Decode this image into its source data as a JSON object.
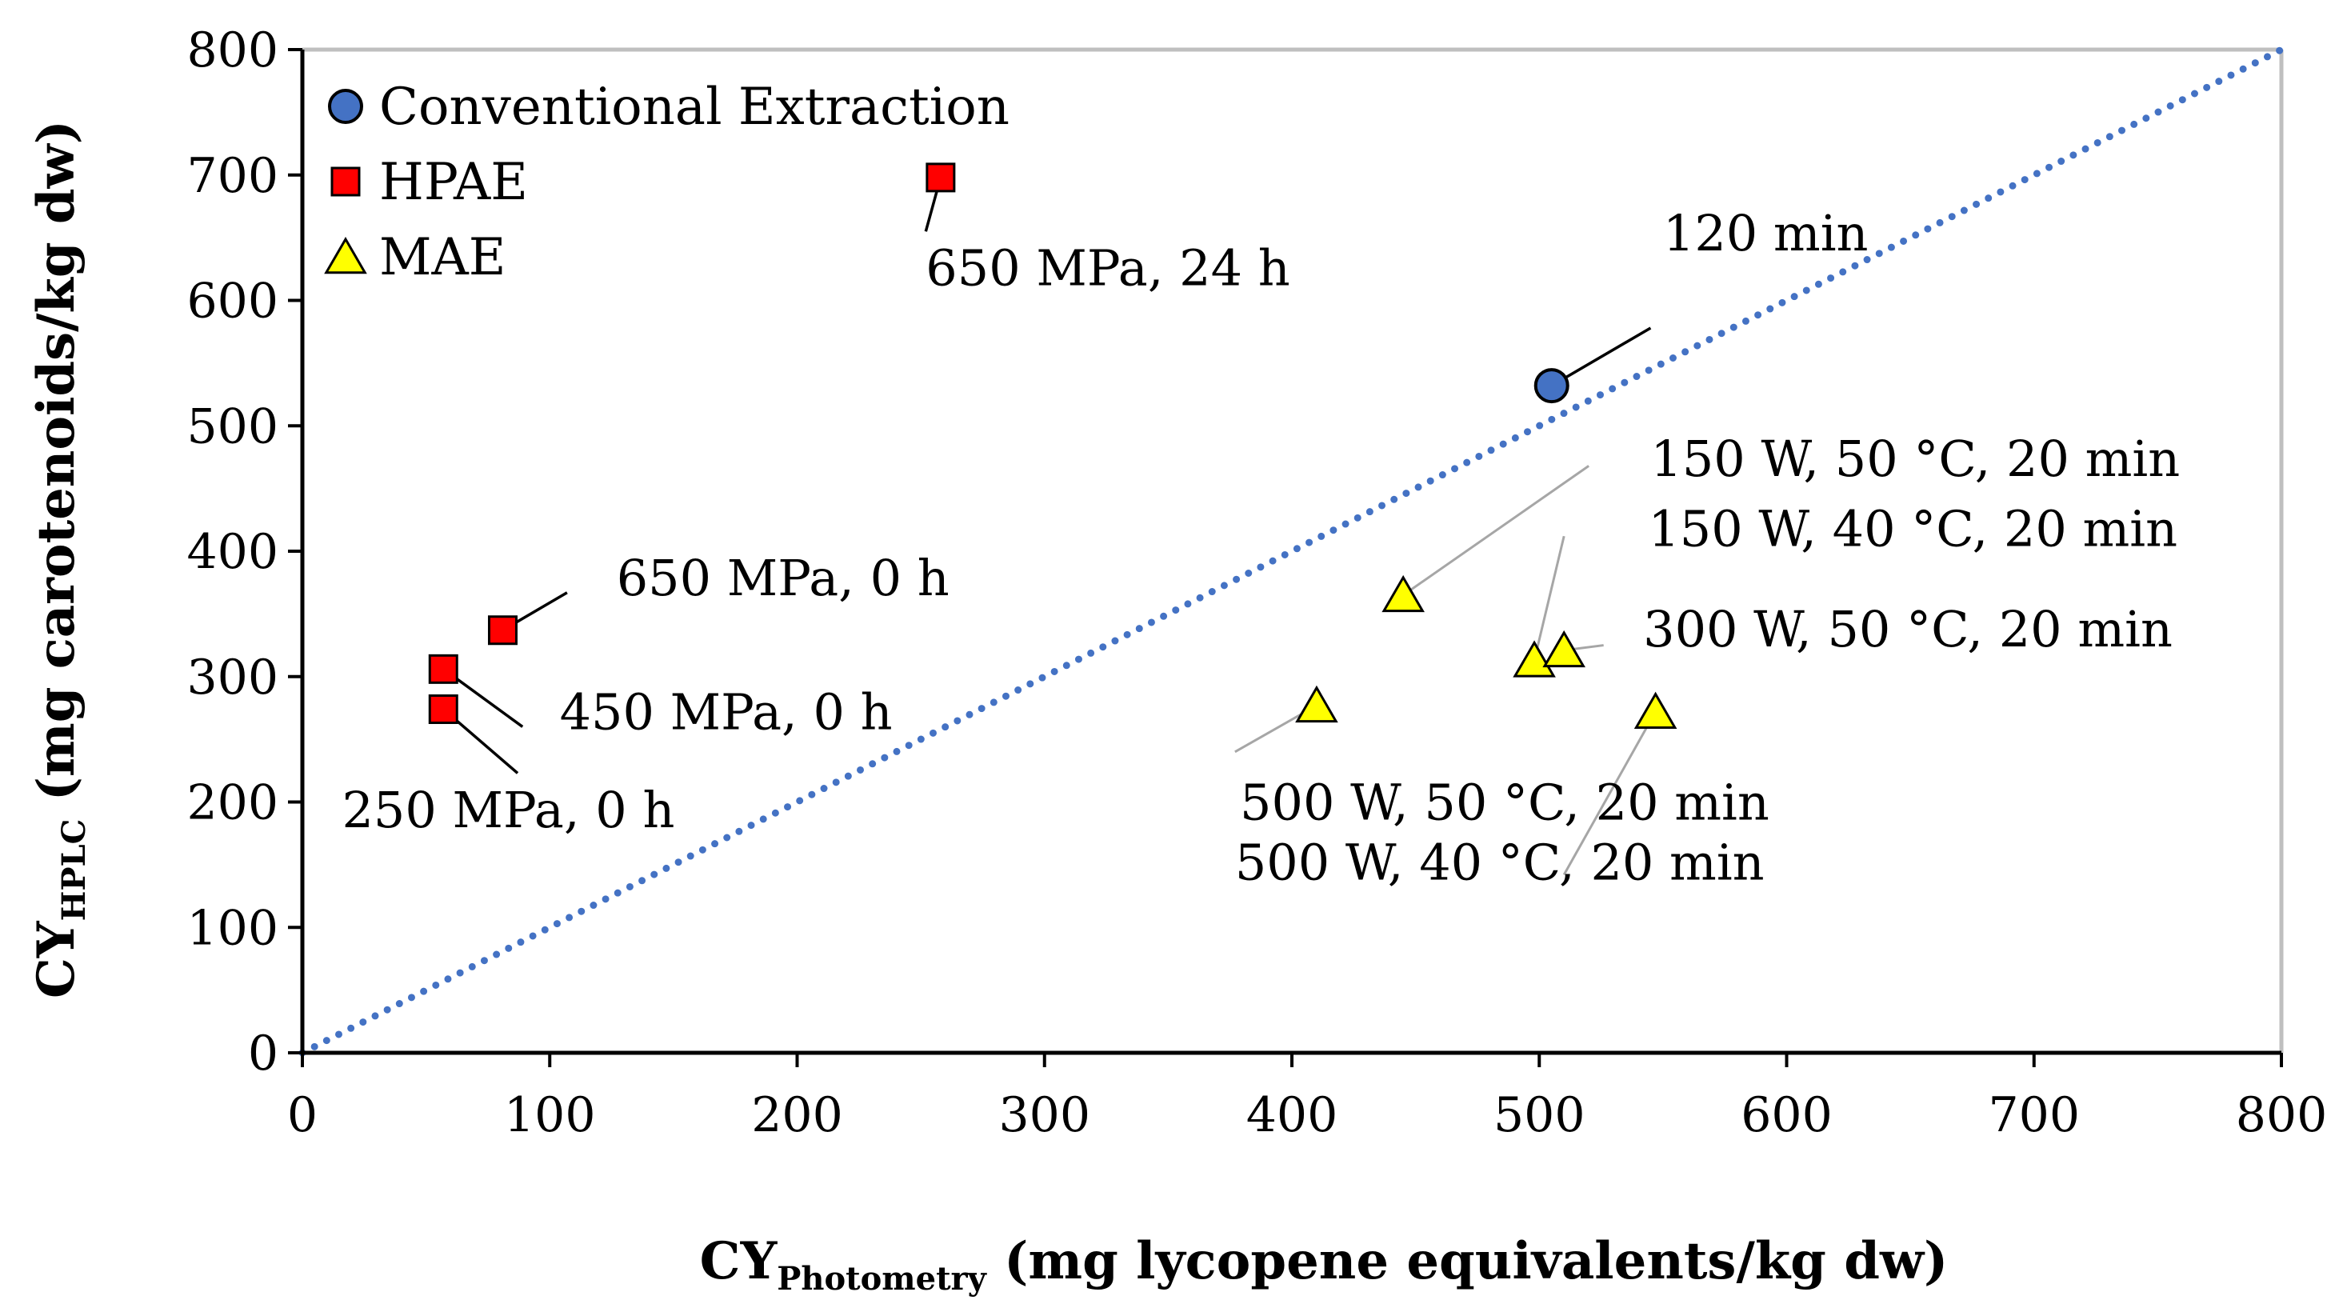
{
  "chart_data": {
    "type": "scatter",
    "title": "",
    "xlabel": {
      "main": "CY",
      "sub": "Photometry",
      "rest": " (mg lycopene equivalents/kg dw)"
    },
    "ylabel": {
      "main": "CY",
      "sub": "HPLC",
      "rest": " (mg carotenoids/kg dw)"
    },
    "xlim": [
      0,
      800
    ],
    "ylim": [
      0,
      800
    ],
    "xticks": [
      0,
      100,
      200,
      300,
      400,
      500,
      600,
      700,
      800
    ],
    "yticks": [
      0,
      100,
      200,
      300,
      400,
      500,
      600,
      700,
      800
    ],
    "grid": false,
    "legend_position": "top-left",
    "reference_line": {
      "style": "dotted",
      "color": "#4472C4",
      "from": [
        0,
        0
      ],
      "to": [
        800,
        800
      ]
    },
    "series": [
      {
        "name": "Conventional Extraction",
        "marker": "circle",
        "color": "#4472C4",
        "points": [
          {
            "x": 505,
            "y": 532,
            "label": "120 min",
            "label_anchor": [
              550,
              640
            ],
            "leader_end": [
              545,
              578
            ]
          }
        ]
      },
      {
        "name": "HPAE",
        "marker": "square",
        "color": "#FF0000",
        "points": [
          {
            "x": 258,
            "y": 698,
            "label": "650 MPa, 24 h",
            "label_anchor": [
              252,
              612
            ],
            "leader_end": [
              252,
              655
            ]
          },
          {
            "x": 81,
            "y": 337,
            "label": "650 MPa, 0 h",
            "label_anchor": [
              127,
              365
            ],
            "leader_end": [
              107,
              367
            ]
          },
          {
            "x": 57,
            "y": 306,
            "label": "450 MPa, 0 h",
            "label_anchor": [
              104,
              258
            ],
            "leader_end": [
              89,
              260
            ]
          },
          {
            "x": 57,
            "y": 274,
            "label": "250 MPa, 0 h",
            "label_anchor": [
              16,
              180
            ],
            "leader_end": [
              87,
              223
            ]
          }
        ]
      },
      {
        "name": "MAE",
        "marker": "triangle",
        "color": "#FFFF00",
        "points": [
          {
            "x": 445,
            "y": 365,
            "label": "150 W, 50 °C, 20 min",
            "label_anchor": [
              545,
              460
            ],
            "leader_end": [
              520,
              468
            ]
          },
          {
            "x": 498,
            "y": 313,
            "label": "150 W, 40 °C, 20 min",
            "label_anchor": [
              544,
              404
            ],
            "leader_end": [
              510,
              412
            ]
          },
          {
            "x": 510,
            "y": 321,
            "label": "300 W, 50 °C, 20 min",
            "label_anchor": [
              542,
              324
            ],
            "leader_end": [
              526,
              325
            ]
          },
          {
            "x": 410,
            "y": 277,
            "label": "500 W, 50 °C, 20 min",
            "label_anchor": [
              379,
              186
            ],
            "leader_end": [
              377,
              240
            ]
          },
          {
            "x": 547,
            "y": 272,
            "label": "500 W, 40 °C, 20 min",
            "label_anchor": [
              377,
              138
            ],
            "leader_end": [
              510,
              142
            ]
          }
        ]
      }
    ]
  }
}
